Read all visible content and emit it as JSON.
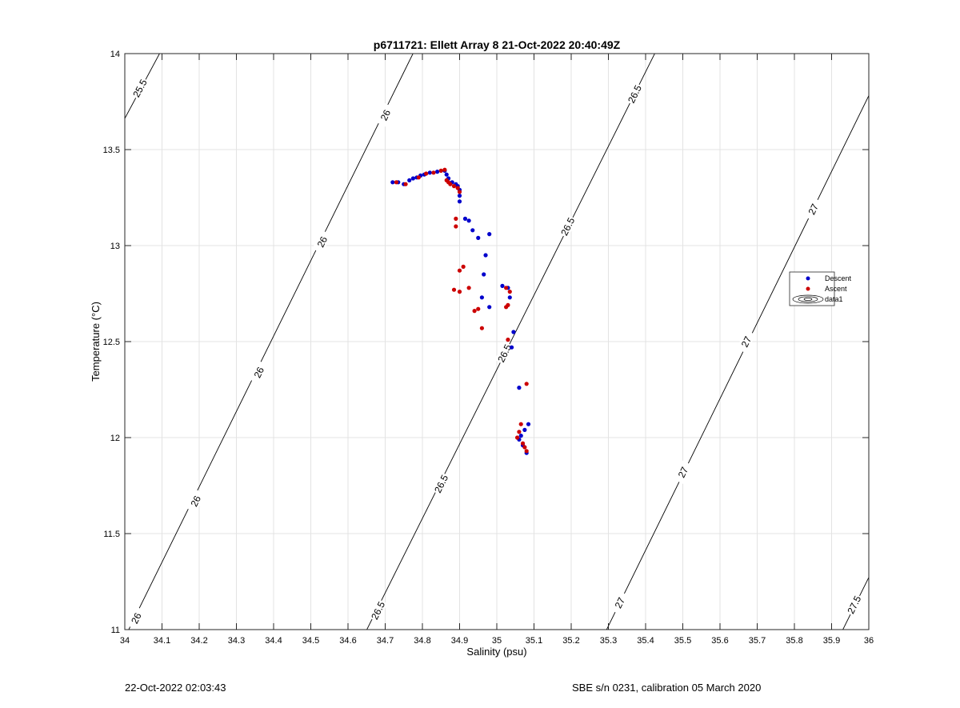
{
  "chart_data": {
    "type": "scatter",
    "title": "p6711721: Ellett Array 8 21-Oct-2022 20:40:49Z",
    "xlabel": "Salinity (psu)",
    "ylabel": "Temperature (°C)",
    "xlim": [
      34,
      36
    ],
    "ylim": [
      11,
      14
    ],
    "xticks": [
      34,
      34.1,
      34.2,
      34.3,
      34.4,
      34.5,
      34.6,
      34.7,
      34.8,
      34.9,
      35,
      35.1,
      35.2,
      35.3,
      35.4,
      35.5,
      35.6,
      35.7,
      35.8,
      35.9,
      36
    ],
    "xtick_labels": [
      "34",
      "34.1",
      "34.2",
      "34.3",
      "34.4",
      "34.5",
      "34.6",
      "34.7",
      "34.8",
      "34.9",
      "35",
      "35.1",
      "35.2",
      "35.3",
      "35.4",
      "35.5",
      "35.6",
      "35.7",
      "35.8",
      "35.9",
      "36"
    ],
    "yticks": [
      11,
      11.5,
      12,
      12.5,
      13,
      13.5,
      14
    ],
    "ytick_labels": [
      "11",
      "11.5",
      "12",
      "12.5",
      "13",
      "13.5",
      "14"
    ],
    "grid": true,
    "legend_position": "right",
    "series": [
      {
        "name": "Descent",
        "color": "#0000cc",
        "points": [
          [
            34.72,
            13.33
          ],
          [
            34.735,
            13.33
          ],
          [
            34.75,
            13.32
          ],
          [
            34.765,
            13.34
          ],
          [
            34.775,
            13.35
          ],
          [
            34.785,
            13.355
          ],
          [
            34.795,
            13.365
          ],
          [
            34.805,
            13.37
          ],
          [
            34.82,
            13.38
          ],
          [
            34.84,
            13.385
          ],
          [
            34.86,
            13.39
          ],
          [
            34.865,
            13.37
          ],
          [
            34.87,
            13.35
          ],
          [
            34.88,
            13.33
          ],
          [
            34.89,
            13.32
          ],
          [
            34.895,
            13.31
          ],
          [
            34.9,
            13.29
          ],
          [
            34.9,
            13.26
          ],
          [
            34.9,
            13.23
          ],
          [
            34.915,
            13.14
          ],
          [
            34.925,
            13.13
          ],
          [
            34.935,
            13.08
          ],
          [
            34.95,
            13.04
          ],
          [
            34.98,
            13.06
          ],
          [
            34.97,
            12.95
          ],
          [
            34.965,
            12.85
          ],
          [
            34.96,
            12.73
          ],
          [
            34.98,
            12.68
          ],
          [
            35.015,
            12.79
          ],
          [
            35.03,
            12.78
          ],
          [
            35.035,
            12.73
          ],
          [
            35.045,
            12.55
          ],
          [
            35.04,
            12.47
          ],
          [
            35.06,
            12.26
          ],
          [
            35.085,
            12.07
          ],
          [
            35.075,
            12.04
          ],
          [
            35.065,
            12.01
          ],
          [
            35.06,
            11.99
          ],
          [
            35.07,
            11.96
          ],
          [
            35.08,
            11.92
          ]
        ]
      },
      {
        "name": "Ascent",
        "color": "#cc0000",
        "points": [
          [
            34.73,
            13.33
          ],
          [
            34.755,
            13.32
          ],
          [
            34.79,
            13.355
          ],
          [
            34.81,
            13.375
          ],
          [
            34.83,
            13.38
          ],
          [
            34.85,
            13.39
          ],
          [
            34.86,
            13.395
          ],
          [
            34.865,
            13.34
          ],
          [
            34.87,
            13.33
          ],
          [
            34.875,
            13.32
          ],
          [
            34.885,
            13.31
          ],
          [
            34.895,
            13.3
          ],
          [
            34.9,
            13.28
          ],
          [
            34.89,
            13.14
          ],
          [
            34.89,
            13.1
          ],
          [
            34.91,
            12.89
          ],
          [
            34.9,
            12.87
          ],
          [
            34.885,
            12.77
          ],
          [
            34.9,
            12.76
          ],
          [
            34.925,
            12.78
          ],
          [
            34.95,
            12.67
          ],
          [
            34.94,
            12.66
          ],
          [
            34.96,
            12.57
          ],
          [
            35.025,
            12.78
          ],
          [
            35.035,
            12.76
          ],
          [
            35.025,
            12.68
          ],
          [
            35.03,
            12.69
          ],
          [
            35.03,
            12.51
          ],
          [
            35.08,
            12.28
          ],
          [
            35.065,
            12.07
          ],
          [
            35.06,
            12.03
          ],
          [
            35.055,
            12.0
          ],
          [
            35.07,
            11.97
          ],
          [
            35.075,
            11.95
          ],
          [
            35.08,
            11.93
          ]
        ]
      },
      {
        "name": "data1",
        "color": "#000000",
        "contours": [
          {
            "level": 25.5,
            "line": [
              [
                33.98,
                13.59
              ],
              [
                34.11,
                14.06
              ]
            ],
            "labels": [
              [
                34.04,
                13.82,
                "25.5"
              ]
            ]
          },
          {
            "level": 26,
            "line": [
              [
                33.98,
                10.88
              ],
              [
                34.79,
                14.06
              ]
            ],
            "labels": [
              [
                34.03,
                11.06,
                "26"
              ],
              [
                34.19,
                11.67,
                "26"
              ],
              [
                34.36,
                12.34,
                "26"
              ],
              [
                34.53,
                13.02,
                "26"
              ],
              [
                34.7,
                13.68,
                "26"
              ]
            ]
          },
          {
            "level": 26.5,
            "line": [
              [
                34.63,
                10.92
              ],
              [
                35.44,
                14.06
              ]
            ],
            "labels": [
              [
                34.68,
                11.1,
                "26.5"
              ],
              [
                34.85,
                11.76,
                "26.5"
              ],
              [
                35.02,
                12.44,
                "26.5"
              ],
              [
                35.19,
                13.1,
                "26.5"
              ],
              [
                35.37,
                13.79,
                "26.5"
              ]
            ]
          },
          {
            "level": 27,
            "line": [
              [
                35.28,
                10.94
              ],
              [
                36.02,
                13.86
              ]
            ],
            "labels": [
              [
                35.33,
                11.14,
                "27"
              ],
              [
                35.5,
                11.82,
                "27"
              ],
              [
                35.67,
                12.5,
                "27"
              ],
              [
                35.85,
                13.19,
                "27"
              ]
            ]
          },
          {
            "level": 27.5,
            "line": [
              [
                35.92,
                10.96
              ],
              [
                36.02,
                11.35
              ]
            ],
            "labels": [
              [
                35.96,
                11.13,
                "27.5"
              ]
            ]
          }
        ]
      }
    ]
  },
  "footer": {
    "left": "22-Oct-2022 02:03:43",
    "right": "SBE s/n 0231, calibration 05 March 2020"
  }
}
